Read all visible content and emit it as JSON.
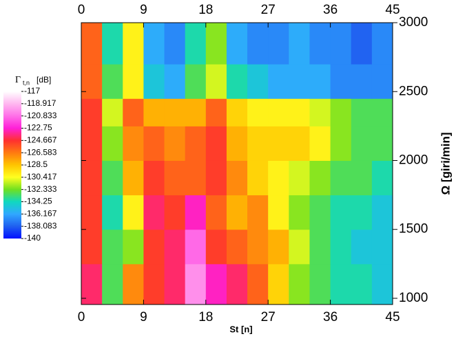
{
  "chart_data": {
    "type": "heatmap",
    "xlabel": "St [n]",
    "ylabel": "Ω  [giri/min]",
    "colorbar_title": {
      "symbol": "Γ",
      "subscript": "t,n",
      "unit": "[dB]"
    },
    "xlim": [
      0,
      45
    ],
    "xticks": [
      0,
      9,
      18,
      27,
      36,
      45
    ],
    "ylim": [
      955,
      3000
    ],
    "yticks": [
      1000,
      1500,
      2000,
      2500,
      3000
    ],
    "x_edges": [
      0,
      3,
      6,
      9,
      12,
      15,
      18,
      21,
      24,
      27,
      30,
      33,
      36,
      39,
      42,
      45
    ],
    "y_edges": [
      955,
      1250,
      1500,
      1750,
      2000,
      2250,
      2450,
      2700,
      3000
    ],
    "z": [
      [
        -124,
        -133,
        -127,
        -125,
        -124,
        -120,
        -123,
        -124,
        -126,
        -129,
        -132,
        -133,
        -134,
        -134,
        -135
      ],
      [
        -125,
        -133,
        -132,
        -125,
        -124,
        -121,
        -125,
        -126,
        -127,
        -128,
        -131,
        -133,
        -134,
        -135,
        -135
      ],
      [
        -125,
        -134,
        -130,
        -124,
        -125,
        -123,
        -126,
        -128,
        -127,
        -130,
        -132,
        -133,
        -134,
        -134,
        -135
      ],
      [
        -125,
        -133,
        -128,
        -125,
        -126,
        -126,
        -125,
        -127,
        -129,
        -130,
        -131,
        -132,
        -133,
        -133,
        -134
      ],
      [
        -125,
        -132,
        -127,
        -126,
        -127,
        -126,
        -125,
        -128,
        -129,
        -129,
        -129,
        -130,
        -132,
        -133,
        -133
      ],
      [
        -125,
        -131,
        -126,
        -128,
        -128,
        -128,
        -126,
        -129,
        -130,
        -130,
        -130,
        -131,
        -132,
        -133,
        -133
      ],
      [
        -126,
        -133,
        -130,
        -135,
        -136,
        -133,
        -131,
        -134,
        -135,
        -136,
        -136,
        -136,
        -137,
        -137,
        -137
      ],
      [
        -126,
        -134,
        -130,
        -136,
        -137,
        -134,
        -132,
        -136,
        -137,
        -137,
        -136,
        -137,
        -137,
        -138,
        -137
      ]
    ],
    "colorbar_ticks": [
      -117,
      -118.917,
      -120.833,
      -122.75,
      -124.667,
      -126.583,
      -128.5,
      -130.417,
      -132.333,
      -134.25,
      -136.167,
      -138.083,
      -140
    ],
    "colormap": [
      "#ffffff",
      "#ffb8f0",
      "#ff70e8",
      "#ff20d8",
      "#ff3030",
      "#ff7a10",
      "#ffc400",
      "#ffff20",
      "#70e020",
      "#10d8c0",
      "#30a8ff",
      "#2060f0",
      "#0010ff"
    ]
  }
}
